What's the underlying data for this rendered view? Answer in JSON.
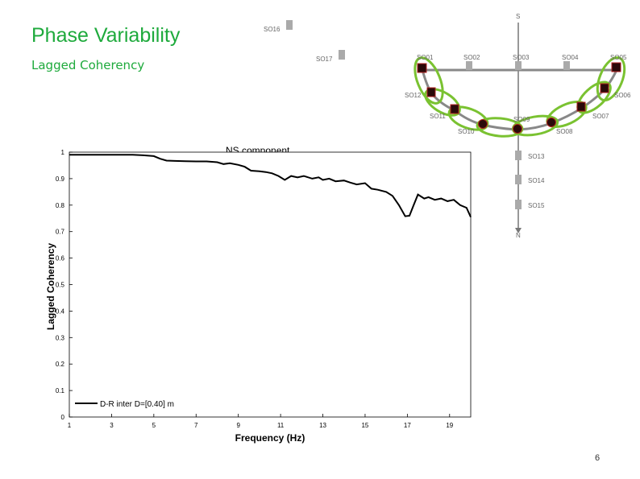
{
  "slide": {
    "title": "Phase Variability",
    "subtitle": "Lagged Coherency",
    "page_number": "6"
  },
  "chart_data": {
    "type": "line",
    "title": "NS component",
    "xlabel": "Frequency (Hz)",
    "ylabel": "Lagged Coherency",
    "xlim": [
      1,
      20
    ],
    "ylim": [
      0,
      1
    ],
    "xticks": [
      1,
      3,
      5,
      7,
      9,
      11,
      13,
      15,
      17,
      19
    ],
    "yticks": [
      0,
      0.1,
      0.2,
      0.3,
      0.4,
      0.5,
      0.6,
      0.7,
      0.8,
      0.9,
      1
    ],
    "ytick_labels": [
      "0",
      "0.1",
      "0.2",
      "0.3",
      "0.4",
      "0.5",
      "0.6",
      "0.7",
      "0.8",
      "0.9",
      "1"
    ],
    "grid": false,
    "legend_position": "bottom-left",
    "series": [
      {
        "name": "D-R inter D=[0.40] m",
        "color": "#000000",
        "x": [
          1.0,
          1.5,
          2.0,
          2.5,
          3.0,
          3.5,
          4.0,
          4.5,
          5.0,
          5.3,
          5.6,
          6.0,
          6.5,
          7.0,
          7.5,
          8.0,
          8.3,
          8.6,
          9.0,
          9.3,
          9.6,
          10.0,
          10.3,
          10.6,
          10.9,
          11.2,
          11.5,
          11.8,
          12.1,
          12.5,
          12.8,
          13.0,
          13.3,
          13.6,
          14.0,
          14.3,
          14.6,
          15.0,
          15.3,
          15.6,
          16.0,
          16.3,
          16.6,
          16.9,
          17.1,
          17.3,
          17.5,
          17.8,
          18.0,
          18.3,
          18.6,
          18.9,
          19.2,
          19.5,
          19.8,
          20.0
        ],
        "y": [
          0.99,
          0.99,
          0.99,
          0.99,
          0.99,
          0.99,
          0.99,
          0.988,
          0.985,
          0.975,
          0.968,
          0.967,
          0.966,
          0.965,
          0.965,
          0.962,
          0.955,
          0.958,
          0.952,
          0.945,
          0.93,
          0.928,
          0.925,
          0.92,
          0.91,
          0.895,
          0.91,
          0.905,
          0.91,
          0.9,
          0.905,
          0.895,
          0.9,
          0.89,
          0.893,
          0.885,
          0.878,
          0.883,
          0.862,
          0.858,
          0.85,
          0.835,
          0.8,
          0.758,
          0.76,
          0.8,
          0.84,
          0.825,
          0.83,
          0.82,
          0.825,
          0.815,
          0.82,
          0.8,
          0.79,
          0.755
        ]
      }
    ]
  },
  "map": {
    "north_label": "N",
    "south_label": "S",
    "sensors_top": [
      "SO01",
      "SO02",
      "SO03",
      "SO04",
      "SO05"
    ],
    "sensors_arc": [
      "SO12",
      "SO11",
      "SO10",
      "SO09",
      "SO08",
      "SO07",
      "SO06"
    ],
    "sensors_line": [
      "SO13",
      "SO14",
      "SO15"
    ],
    "sensors_other": [
      "SO16",
      "SO17"
    ],
    "highlight_color": "#7ac231",
    "sensor_color": "#2a0a0a"
  }
}
